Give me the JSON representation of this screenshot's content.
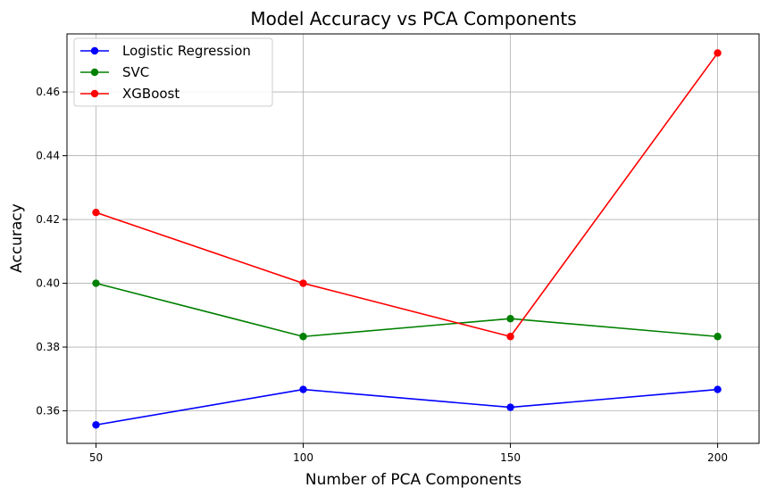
{
  "chart_data": {
    "type": "line",
    "title": "Model Accuracy vs PCA Components",
    "xlabel": "Number of PCA Components",
    "ylabel": "Accuracy",
    "x": [
      50,
      100,
      150,
      200
    ],
    "x_ticks": [
      "50",
      "100",
      "150",
      "200"
    ],
    "y_ticks": [
      "0.36",
      "0.38",
      "0.40",
      "0.42",
      "0.44",
      "0.46"
    ],
    "xlim": [
      43,
      210
    ],
    "ylim": [
      0.3498,
      0.4782
    ],
    "grid": true,
    "legend_position": "top-left",
    "series": [
      {
        "name": "Logistic Regression",
        "color": "#0000ff",
        "values": [
          0.3556,
          0.3667,
          0.3611,
          0.3667
        ]
      },
      {
        "name": "SVC",
        "color": "#008000",
        "values": [
          0.4,
          0.3833,
          0.3889,
          0.3833
        ]
      },
      {
        "name": "XGBoost",
        "color": "#ff0000",
        "values": [
          0.4222,
          0.4,
          0.3833,
          0.4722
        ]
      }
    ]
  }
}
